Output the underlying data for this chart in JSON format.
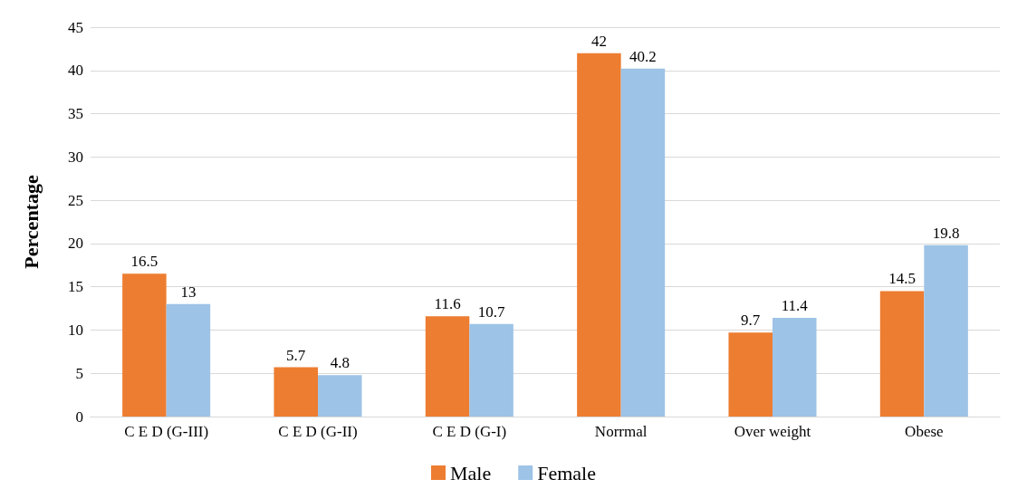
{
  "chart_data": {
    "type": "bar",
    "ylabel": "Percentage",
    "categories": [
      "C E D (G-III)",
      "C E D (G-II)",
      "C E D (G-I)",
      "Norrmal",
      "Over weight",
      "Obese"
    ],
    "series": [
      {
        "name": "Male",
        "color": "#ed7d31",
        "values": [
          16.5,
          5.7,
          11.6,
          42,
          9.7,
          14.5
        ]
      },
      {
        "name": "Female",
        "color": "#9dc3e6",
        "values": [
          13,
          4.8,
          10.7,
          40.2,
          11.4,
          19.8
        ]
      }
    ],
    "ylim": [
      0,
      45
    ],
    "yticks": [
      0,
      5,
      10,
      15,
      20,
      25,
      30,
      35,
      40,
      45
    ],
    "grid": "y",
    "legend": "bottom",
    "data_labels": true
  }
}
